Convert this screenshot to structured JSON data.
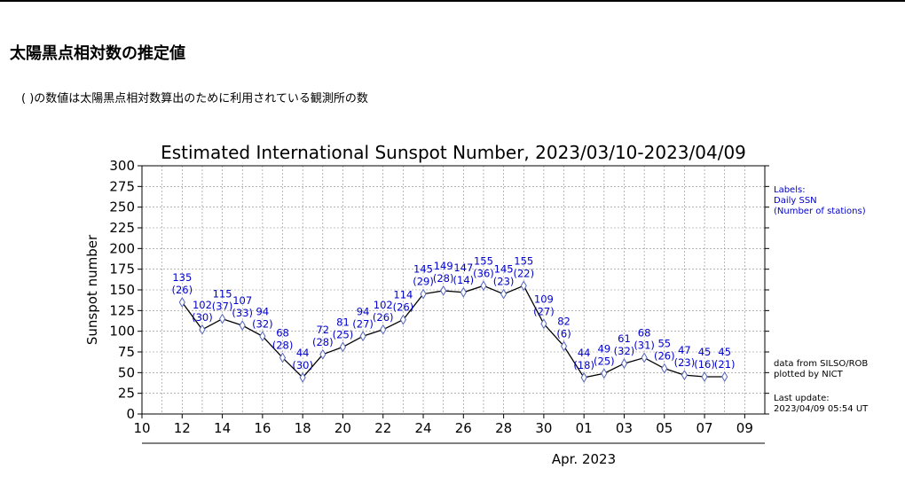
{
  "page": {
    "heading": "太陽黒点相対数の推定値",
    "note": "( )の数値は太陽黒点相対数算出のために利用されている観測所の数"
  },
  "chart_data": {
    "type": "line",
    "title": "Estimated International Sunspot Number, 2023/03/10-2023/04/09",
    "xlabel": "Apr. 2023",
    "ylabel": "Sunspot number",
    "ylim": [
      0,
      300
    ],
    "yticks": [
      0,
      25,
      50,
      75,
      100,
      125,
      150,
      175,
      200,
      225,
      250,
      275,
      300
    ],
    "xticks": [
      {
        "day": 0,
        "label": "10"
      },
      {
        "day": 2,
        "label": "12"
      },
      {
        "day": 4,
        "label": "14"
      },
      {
        "day": 6,
        "label": "16"
      },
      {
        "day": 8,
        "label": "18"
      },
      {
        "day": 10,
        "label": "20"
      },
      {
        "day": 12,
        "label": "22"
      },
      {
        "day": 14,
        "label": "24"
      },
      {
        "day": 16,
        "label": "26"
      },
      {
        "day": 18,
        "label": "28"
      },
      {
        "day": 20,
        "label": "30"
      },
      {
        "day": 22,
        "label": "01"
      },
      {
        "day": 24,
        "label": "03"
      },
      {
        "day": 26,
        "label": "05"
      },
      {
        "day": 28,
        "label": "07"
      },
      {
        "day": 30,
        "label": "09"
      }
    ],
    "xlim_days": [
      0,
      31
    ],
    "grid": true,
    "series": [
      {
        "name": "Daily SSN",
        "points": [
          {
            "day": 2,
            "value": 135,
            "stations": 26
          },
          {
            "day": 3,
            "value": 102,
            "stations": 30
          },
          {
            "day": 4,
            "value": 115,
            "stations": 37
          },
          {
            "day": 5,
            "value": 107,
            "stations": 33
          },
          {
            "day": 6,
            "value": 94,
            "stations": 32
          },
          {
            "day": 7,
            "value": 68,
            "stations": 28
          },
          {
            "day": 8,
            "value": 44,
            "stations": 30
          },
          {
            "day": 9,
            "value": 72,
            "stations": 28
          },
          {
            "day": 10,
            "value": 81,
            "stations": 25
          },
          {
            "day": 11,
            "value": 94,
            "stations": 27
          },
          {
            "day": 12,
            "value": 102,
            "stations": 26
          },
          {
            "day": 13,
            "value": 114,
            "stations": 26
          },
          {
            "day": 14,
            "value": 145,
            "stations": 29
          },
          {
            "day": 15,
            "value": 149,
            "stations": 28
          },
          {
            "day": 16,
            "value": 147,
            "stations": 14
          },
          {
            "day": 17,
            "value": 155,
            "stations": 36
          },
          {
            "day": 18,
            "value": 145,
            "stations": 23
          },
          {
            "day": 19,
            "value": 155,
            "stations": 22
          },
          {
            "day": 20,
            "value": 109,
            "stations": 27
          },
          {
            "day": 21,
            "value": 82,
            "stations": 6
          },
          {
            "day": 22,
            "value": 44,
            "stations": 18
          },
          {
            "day": 23,
            "value": 49,
            "stations": 25
          },
          {
            "day": 24,
            "value": 61,
            "stations": 32
          },
          {
            "day": 25,
            "value": 68,
            "stations": 31
          },
          {
            "day": 26,
            "value": 55,
            "stations": 26
          },
          {
            "day": 27,
            "value": 47,
            "stations": 23
          },
          {
            "day": 28,
            "value": 45,
            "stations": 16
          },
          {
            "day": 29,
            "value": 45,
            "stations": 21
          }
        ]
      }
    ],
    "legend": {
      "position": "top-right",
      "lines": [
        "Labels:",
        "Daily SSN",
        "(Number of stations)"
      ],
      "color": "#0000cc"
    },
    "annotations": {
      "source_lines": [
        "data from SILSO/ROB",
        "plotted by NICT"
      ],
      "update_lines": [
        "Last update:",
        "2023/04/09 05:54 UT"
      ]
    },
    "colors": {
      "line": "#000000",
      "label": "#0000cc",
      "marker": "#5566bb",
      "grid": "#888888"
    }
  }
}
